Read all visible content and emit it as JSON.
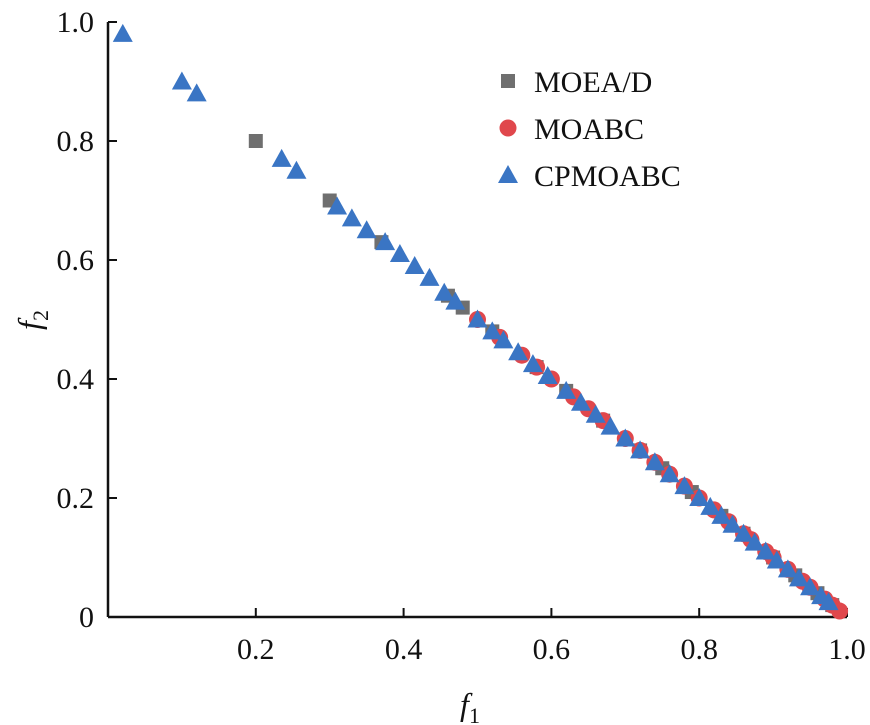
{
  "chart_data": {
    "type": "scatter",
    "title": "",
    "xlabel": "f",
    "xlabel_sub": "1",
    "ylabel": "f",
    "ylabel_sub": "2",
    "xlim": [
      0,
      1.0
    ],
    "ylim": [
      0,
      1.0
    ],
    "x_ticks": [
      0.2,
      0.4,
      0.6,
      0.8,
      1.0
    ],
    "x_tick_labels": [
      "0.2",
      "0.4",
      "0.6",
      "0.8",
      "1.0"
    ],
    "y_ticks": [
      0,
      0.2,
      0.4,
      0.6,
      0.8,
      1.0
    ],
    "y_tick_labels": [
      "0",
      "0.2",
      "0.4",
      "0.6",
      "0.8",
      "1.0"
    ],
    "grid": false,
    "legend_position": "top-right",
    "series": [
      {
        "name": "MOEA/D",
        "marker": "square",
        "color": "#6f6f6f",
        "points": [
          [
            0.2,
            0.8
          ],
          [
            0.3,
            0.7
          ],
          [
            0.37,
            0.63
          ],
          [
            0.46,
            0.54
          ],
          [
            0.48,
            0.52
          ],
          [
            0.52,
            0.48
          ],
          [
            0.58,
            0.42
          ],
          [
            0.62,
            0.38
          ],
          [
            0.67,
            0.33
          ],
          [
            0.72,
            0.28
          ],
          [
            0.75,
            0.25
          ],
          [
            0.79,
            0.21
          ],
          [
            0.83,
            0.17
          ],
          [
            0.86,
            0.14
          ],
          [
            0.9,
            0.1
          ],
          [
            0.93,
            0.07
          ],
          [
            0.96,
            0.04
          ],
          [
            0.98,
            0.02
          ]
        ]
      },
      {
        "name": "MOABC",
        "marker": "circle",
        "color": "#e0474c",
        "points": [
          [
            0.5,
            0.5
          ],
          [
            0.53,
            0.47
          ],
          [
            0.56,
            0.44
          ],
          [
            0.58,
            0.42
          ],
          [
            0.6,
            0.4
          ],
          [
            0.63,
            0.37
          ],
          [
            0.65,
            0.35
          ],
          [
            0.67,
            0.33
          ],
          [
            0.7,
            0.3
          ],
          [
            0.72,
            0.28
          ],
          [
            0.74,
            0.26
          ],
          [
            0.76,
            0.24
          ],
          [
            0.78,
            0.22
          ],
          [
            0.8,
            0.2
          ],
          [
            0.82,
            0.18
          ],
          [
            0.84,
            0.16
          ],
          [
            0.86,
            0.14
          ],
          [
            0.87,
            0.13
          ],
          [
            0.89,
            0.11
          ],
          [
            0.9,
            0.1
          ],
          [
            0.92,
            0.08
          ],
          [
            0.94,
            0.06
          ],
          [
            0.95,
            0.05
          ],
          [
            0.97,
            0.03
          ],
          [
            0.98,
            0.02
          ],
          [
            0.99,
            0.01
          ]
        ]
      },
      {
        "name": "CPMOABC",
        "marker": "triangle",
        "color": "#3a75c4",
        "points": [
          [
            0.02,
            0.98
          ],
          [
            0.1,
            0.9
          ],
          [
            0.12,
            0.88
          ],
          [
            0.235,
            0.77
          ],
          [
            0.255,
            0.75
          ],
          [
            0.31,
            0.69
          ],
          [
            0.33,
            0.67
          ],
          [
            0.35,
            0.65
          ],
          [
            0.375,
            0.63
          ],
          [
            0.395,
            0.61
          ],
          [
            0.415,
            0.59
          ],
          [
            0.435,
            0.57
          ],
          [
            0.455,
            0.545
          ],
          [
            0.47,
            0.53
          ],
          [
            0.5,
            0.5
          ],
          [
            0.52,
            0.48
          ],
          [
            0.535,
            0.465
          ],
          [
            0.555,
            0.445
          ],
          [
            0.575,
            0.425
          ],
          [
            0.595,
            0.405
          ],
          [
            0.62,
            0.38
          ],
          [
            0.64,
            0.36
          ],
          [
            0.66,
            0.34
          ],
          [
            0.68,
            0.32
          ],
          [
            0.7,
            0.3
          ],
          [
            0.72,
            0.28
          ],
          [
            0.74,
            0.26
          ],
          [
            0.76,
            0.24
          ],
          [
            0.78,
            0.22
          ],
          [
            0.8,
            0.2
          ],
          [
            0.815,
            0.185
          ],
          [
            0.83,
            0.17
          ],
          [
            0.845,
            0.155
          ],
          [
            0.86,
            0.14
          ],
          [
            0.875,
            0.125
          ],
          [
            0.89,
            0.11
          ],
          [
            0.905,
            0.095
          ],
          [
            0.92,
            0.08
          ],
          [
            0.935,
            0.065
          ],
          [
            0.95,
            0.05
          ],
          [
            0.965,
            0.035
          ],
          [
            0.975,
            0.025
          ]
        ]
      }
    ]
  }
}
